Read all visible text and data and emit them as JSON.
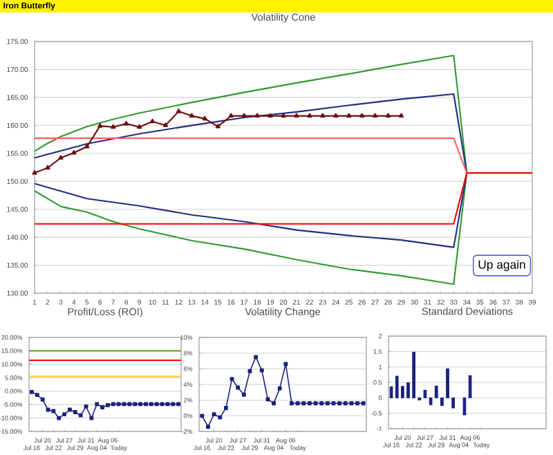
{
  "chart_data": [
    {
      "type": "line",
      "title": "Volatility Cone",
      "annotations": [
        "Iron Butterfly",
        "Up again"
      ],
      "xlim": [
        1,
        39
      ],
      "xticks": [
        1,
        2,
        3,
        4,
        5,
        6,
        7,
        8,
        9,
        10,
        11,
        12,
        13,
        14,
        15,
        16,
        17,
        18,
        19,
        20,
        21,
        22,
        23,
        24,
        25,
        26,
        27,
        28,
        29,
        30,
        31,
        32,
        33,
        34,
        35,
        36,
        37,
        38,
        39
      ],
      "ylim": [
        130,
        175
      ],
      "yticks": [
        {
          "value": 130,
          "label": "130.00"
        },
        {
          "value": 135,
          "label": "135.00"
        },
        {
          "value": 140,
          "label": "140.00"
        },
        {
          "value": 145,
          "label": "145.00"
        },
        {
          "value": 150,
          "label": "150.00"
        },
        {
          "value": 155,
          "label": "155.00"
        },
        {
          "value": 160,
          "label": "160.00"
        },
        {
          "value": 165,
          "label": "165.00"
        },
        {
          "value": 170,
          "label": "170.00"
        },
        {
          "value": 175,
          "label": "175.00"
        }
      ],
      "grid": "y",
      "marker": "none",
      "series": [
        {
          "color": "#339933",
          "x": [
            1,
            2,
            3,
            5,
            7,
            9,
            13,
            17,
            21,
            25,
            29,
            33,
            34,
            33,
            29,
            25,
            21,
            17,
            13,
            9,
            7,
            5,
            3,
            1
          ],
          "values": [
            155.4,
            156.8,
            158,
            159.8,
            161.1,
            162.2,
            164.1,
            165.9,
            167.6,
            169.2,
            170.9,
            172.5,
            151.5,
            131.6,
            133.1,
            134.3,
            136,
            137.9,
            139.4,
            141.5,
            142.8,
            144.5,
            145.5,
            148.3
          ]
        },
        {
          "color": "#1f2f80",
          "x": [
            1,
            5,
            9,
            13,
            17,
            21,
            25,
            29,
            33,
            34,
            33,
            29,
            25,
            21,
            17,
            13,
            9,
            5,
            1
          ],
          "values": [
            154.2,
            156.7,
            158.5,
            160,
            161.4,
            162.4,
            163.6,
            164.7,
            165.6,
            151.5,
            138.2,
            139.5,
            140.3,
            141.3,
            142.8,
            144,
            145.6,
            146.9,
            149.6
          ]
        },
        {
          "color": "#ff6060",
          "x": [
            1,
            33,
            34
          ],
          "values": [
            157.7,
            157.7,
            151.5
          ]
        },
        {
          "color": "#ff0000",
          "x": [
            1,
            33,
            34,
            39
          ],
          "values": [
            142.4,
            142.4,
            151.5,
            151.5
          ]
        },
        {
          "color": "#6b1010",
          "marker": "triangle",
          "x": [
            1,
            2,
            3,
            4,
            5,
            6,
            7,
            8,
            9,
            10,
            11,
            12,
            13,
            14,
            15,
            16,
            17,
            18,
            19,
            20,
            21,
            22,
            23,
            24,
            25,
            26,
            27,
            28,
            29
          ],
          "values": [
            151.5,
            152.4,
            154.2,
            155.1,
            156.2,
            159.9,
            159.7,
            160.3,
            159.7,
            160.7,
            160.0,
            162.5,
            161.7,
            161.2,
            159.8,
            161.7,
            161.7,
            161.7,
            161.7,
            161.7,
            161.7,
            161.7,
            161.7,
            161.7,
            161.7,
            161.7,
            161.7,
            161.7,
            161.7
          ]
        }
      ]
    },
    {
      "type": "line",
      "title": "Profit/Loss (ROI)",
      "marker": "square",
      "grid": "y",
      "color": "#1a237e",
      "categories": [
        "Jul 16",
        null,
        "Jul 20",
        null,
        "Jul 22",
        null,
        "Jul 27",
        null,
        "Jul 29",
        null,
        "Jul 31",
        null,
        "Aug 04",
        null,
        "Aug 06",
        null,
        "Today",
        null,
        null,
        null,
        null,
        null,
        null,
        null,
        null,
        null,
        null,
        null
      ],
      "values": [
        -0.3,
        -1.4,
        -3.1,
        -6.9,
        -7.4,
        -10,
        -8.6,
        -6.9,
        -7.8,
        -9.0,
        -5.7,
        -10,
        -4.8,
        -6.0,
        -5.2,
        -4.8,
        -4.8,
        -4.8,
        -4.8,
        -4.8,
        -4.8,
        -4.8,
        -4.8,
        -4.8,
        -4.8,
        -4.8,
        -4.8,
        -4.8
      ],
      "ylim": [
        -15,
        20
      ],
      "yticks": [
        {
          "value": -15,
          "label": "-15.00%"
        },
        {
          "value": -10,
          "label": "-10.00%"
        },
        {
          "value": -5,
          "label": "-5.00%"
        },
        {
          "value": 0,
          "label": "0.00%"
        },
        {
          "value": 5,
          "label": "5.00%"
        },
        {
          "value": 10,
          "label": "10.00%"
        },
        {
          "value": 15,
          "label": "15.00%"
        },
        {
          "value": 20,
          "label": "20.00%"
        }
      ],
      "ref_lines": [
        {
          "axis": "y",
          "value": 15,
          "color": "#66aa33"
        },
        {
          "axis": "y",
          "value": 11.5,
          "color": "#ff0000"
        },
        {
          "axis": "y",
          "value": 5.5,
          "color": "#ffcc33"
        }
      ]
    },
    {
      "type": "line",
      "title": "Volatility Change",
      "marker": "square",
      "grid": "y",
      "color": "#1a237e",
      "categories": [
        "Jul 16",
        null,
        "Jul 20",
        null,
        "Jul 22",
        null,
        "Jul 27",
        null,
        "Jul 29",
        null,
        "Jul 31",
        null,
        "Aug 04",
        null,
        "Aug 06",
        null,
        "Today",
        null,
        null,
        null,
        null,
        null,
        null,
        null,
        null,
        null,
        null,
        null
      ],
      "values": [
        0,
        -1.4,
        0.2,
        -0.2,
        1.0,
        4.7,
        3.6,
        2.7,
        5.7,
        7.5,
        5.8,
        2.1,
        1.6,
        3.5,
        6.6,
        1.6,
        1.6,
        1.6,
        1.6,
        1.6,
        1.6,
        1.6,
        1.6,
        1.6,
        1.6,
        1.6,
        1.6,
        1.6
      ],
      "ylim": [
        -2,
        10
      ],
      "yticks": [
        {
          "value": -2,
          "label": "-2%"
        },
        {
          "value": 0,
          "label": "0%"
        },
        {
          "value": 2,
          "label": "2%"
        },
        {
          "value": 4,
          "label": "4%"
        },
        {
          "value": 6,
          "label": "6%"
        },
        {
          "value": 8,
          "label": "8%"
        },
        {
          "value": 10,
          "label": "10%"
        }
      ]
    },
    {
      "type": "bar",
      "title": "Standard Deviations",
      "grid": "y",
      "color": "#1a237e",
      "categories": [
        "Jul 16",
        null,
        "Jul 20",
        null,
        "Jul 22",
        null,
        "Jul 27",
        null,
        "Jul 29",
        null,
        "Jul 31",
        null,
        "Aug 04",
        null,
        "Aug 06",
        null,
        "Today",
        null,
        null,
        null,
        null,
        null,
        null,
        null,
        null,
        null,
        null,
        null
      ],
      "values": [
        0.36,
        0.7,
        0.37,
        0.49,
        1.48,
        -0.07,
        0.25,
        -0.22,
        0.38,
        -0.25,
        0.94,
        -0.33,
        null,
        -0.55,
        0.72,
        null,
        null,
        null,
        null,
        null,
        null,
        null,
        null,
        null,
        null,
        null,
        null,
        null
      ],
      "ylim": [
        -1,
        2
      ],
      "yticks": [
        -1,
        -0.5,
        0,
        0.5,
        1,
        1.5,
        2
      ]
    }
  ]
}
